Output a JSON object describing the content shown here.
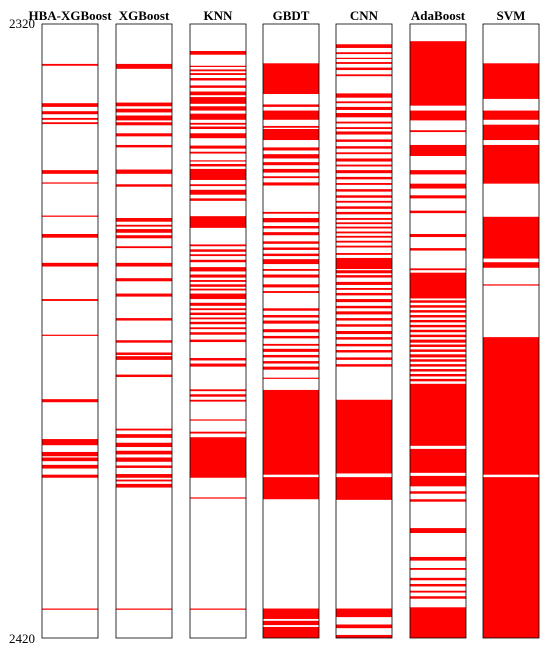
{
  "chart_data": {
    "type": "heatmap",
    "y_start": 2320,
    "y_end": 2420,
    "y_tick_labels": [
      "2320",
      "2420"
    ],
    "color": "#ff0000",
    "columns": [
      {
        "name": "HBA-XGBoost",
        "intervals": [
          [
            2326.5,
            2326.8
          ],
          [
            2332.9,
            2333.5
          ],
          [
            2334.2,
            2334.7
          ],
          [
            2335.3,
            2335.6
          ],
          [
            2336.0,
            2336.3
          ],
          [
            2343.8,
            2344.4
          ],
          [
            2345.8,
            2346.0
          ],
          [
            2351.2,
            2351.4
          ],
          [
            2354.2,
            2354.8
          ],
          [
            2358.9,
            2359.5
          ],
          [
            2364.8,
            2365.1
          ],
          [
            2370.6,
            2370.8
          ],
          [
            2381.1,
            2381.6
          ],
          [
            2387.6,
            2388.6
          ],
          [
            2389.7,
            2390.4
          ],
          [
            2390.6,
            2391.2
          ],
          [
            2391.8,
            2392.4
          ],
          [
            2393.4,
            2393.9
          ],
          [
            2415.2,
            2415.4
          ]
        ]
      },
      {
        "name": "XGBoost",
        "intervals": [
          [
            2326.5,
            2327.3
          ],
          [
            2332.8,
            2333.4
          ],
          [
            2333.8,
            2334.4
          ],
          [
            2334.9,
            2335.7
          ],
          [
            2336.0,
            2336.5
          ],
          [
            2337.8,
            2338.3
          ],
          [
            2339.7,
            2340.1
          ],
          [
            2343.7,
            2344.4
          ],
          [
            2346.1,
            2346.5
          ],
          [
            2351.6,
            2352.2
          ],
          [
            2352.7,
            2353.0
          ],
          [
            2353.4,
            2354.0
          ],
          [
            2354.4,
            2354.9
          ],
          [
            2356.2,
            2356.5
          ],
          [
            2358.9,
            2359.5
          ],
          [
            2361.4,
            2361.9
          ],
          [
            2363.9,
            2364.4
          ],
          [
            2367.9,
            2368.3
          ],
          [
            2371.5,
            2371.9
          ],
          [
            2373.5,
            2373.9
          ],
          [
            2374.1,
            2374.7
          ],
          [
            2377.1,
            2377.5
          ],
          [
            2385.9,
            2386.2
          ],
          [
            2386.8,
            2387.4
          ],
          [
            2388.2,
            2388.9
          ],
          [
            2389.5,
            2390.1
          ],
          [
            2390.6,
            2391.3
          ],
          [
            2391.9,
            2392.3
          ],
          [
            2393.3,
            2393.9
          ],
          [
            2394.2,
            2394.5
          ],
          [
            2394.9,
            2395.5
          ],
          [
            2415.2,
            2415.4
          ]
        ]
      },
      {
        "name": "KNN",
        "intervals": [
          [
            2324.4,
            2325.0
          ],
          [
            2326.8,
            2327.0
          ],
          [
            2327.4,
            2327.7
          ],
          [
            2328.0,
            2328.3
          ],
          [
            2328.8,
            2329.2
          ],
          [
            2330.0,
            2330.4
          ],
          [
            2331.0,
            2331.6
          ],
          [
            2331.9,
            2333.0
          ],
          [
            2333.4,
            2334.1
          ],
          [
            2334.6,
            2335.6
          ],
          [
            2336.1,
            2336.4
          ],
          [
            2336.7,
            2337.1
          ],
          [
            2337.8,
            2338.6
          ],
          [
            2339.8,
            2340.3
          ],
          [
            2340.8,
            2341.1
          ],
          [
            2342.2,
            2342.4
          ],
          [
            2342.8,
            2343.2
          ],
          [
            2343.6,
            2345.4
          ],
          [
            2346.1,
            2346.4
          ],
          [
            2347.0,
            2347.8
          ],
          [
            2348.4,
            2348.8
          ],
          [
            2351.3,
            2353.2
          ],
          [
            2355.9,
            2356.2
          ],
          [
            2356.7,
            2357.1
          ],
          [
            2357.5,
            2357.8
          ],
          [
            2358.4,
            2358.8
          ],
          [
            2359.6,
            2360.3
          ],
          [
            2360.8,
            2361.3
          ],
          [
            2361.7,
            2362.0
          ],
          [
            2362.4,
            2362.8
          ],
          [
            2363.1,
            2363.4
          ],
          [
            2363.9,
            2364.8
          ],
          [
            2365.4,
            2365.9
          ],
          [
            2366.3,
            2366.6
          ],
          [
            2367.0,
            2367.4
          ],
          [
            2367.8,
            2368.1
          ],
          [
            2368.5,
            2368.9
          ],
          [
            2369.4,
            2369.7
          ],
          [
            2370.2,
            2370.6
          ],
          [
            2371.4,
            2371.8
          ],
          [
            2374.4,
            2374.8
          ],
          [
            2375.3,
            2375.8
          ],
          [
            2379.5,
            2379.8
          ],
          [
            2380.3,
            2380.7
          ],
          [
            2381.2,
            2381.5
          ],
          [
            2384.4,
            2384.6
          ],
          [
            2386.4,
            2386.7
          ],
          [
            2387.3,
            2393.9
          ],
          [
            2397.1,
            2397.3
          ],
          [
            2415.2,
            2415.4
          ]
        ]
      },
      {
        "name": "GBDT",
        "intervals": [
          [
            2326.4,
            2331.4
          ],
          [
            2333.1,
            2333.5
          ],
          [
            2334.1,
            2335.6
          ],
          [
            2336.6,
            2336.9
          ],
          [
            2337.1,
            2338.9
          ],
          [
            2340.1,
            2340.6
          ],
          [
            2341.2,
            2341.9
          ],
          [
            2342.5,
            2343.0
          ],
          [
            2343.6,
            2344.2
          ],
          [
            2344.8,
            2345.1
          ],
          [
            2345.8,
            2346.3
          ],
          [
            2350.6,
            2350.9
          ],
          [
            2351.6,
            2352.3
          ],
          [
            2352.9,
            2353.3
          ],
          [
            2353.9,
            2354.4
          ],
          [
            2355.4,
            2355.8
          ],
          [
            2356.4,
            2356.8
          ],
          [
            2357.4,
            2357.8
          ],
          [
            2358.3,
            2359.1
          ],
          [
            2359.9,
            2360.2
          ],
          [
            2360.8,
            2361.3
          ],
          [
            2362.4,
            2362.9
          ],
          [
            2363.5,
            2363.8
          ],
          [
            2366.3,
            2366.7
          ],
          [
            2367.4,
            2367.8
          ],
          [
            2368.3,
            2368.8
          ],
          [
            2369.7,
            2370.2
          ],
          [
            2370.8,
            2371.2
          ],
          [
            2372.1,
            2372.4
          ],
          [
            2372.9,
            2373.4
          ],
          [
            2373.9,
            2374.3
          ],
          [
            2374.9,
            2375.3
          ],
          [
            2375.8,
            2376.3
          ],
          [
            2377.6,
            2377.8
          ],
          [
            2379.6,
            2393.4
          ],
          [
            2393.8,
            2397.4
          ],
          [
            2415.2,
            2416.9
          ],
          [
            2417.2,
            2417.9
          ],
          [
            2418.2,
            2420.0
          ]
        ]
      },
      {
        "name": "CNN",
        "intervals": [
          [
            2323.3,
            2323.9
          ],
          [
            2324.6,
            2324.9
          ],
          [
            2325.5,
            2325.7
          ],
          [
            2326.2,
            2326.5
          ],
          [
            2327.1,
            2327.5
          ],
          [
            2328.2,
            2328.5
          ],
          [
            2331.3,
            2332.0
          ],
          [
            2332.6,
            2332.9
          ],
          [
            2333.5,
            2334.0
          ],
          [
            2334.5,
            2335.2
          ],
          [
            2335.9,
            2336.2
          ],
          [
            2336.8,
            2337.1
          ],
          [
            2337.5,
            2338.0
          ],
          [
            2338.8,
            2339.2
          ],
          [
            2339.9,
            2340.3
          ],
          [
            2340.9,
            2341.2
          ],
          [
            2341.9,
            2342.4
          ],
          [
            2342.9,
            2343.2
          ],
          [
            2343.8,
            2344.3
          ],
          [
            2344.9,
            2345.3
          ],
          [
            2345.9,
            2346.2
          ],
          [
            2346.9,
            2347.3
          ],
          [
            2347.9,
            2348.3
          ],
          [
            2348.8,
            2349.1
          ],
          [
            2349.7,
            2350.1
          ],
          [
            2350.6,
            2351.0
          ],
          [
            2351.6,
            2351.9
          ],
          [
            2352.3,
            2352.6
          ],
          [
            2353.0,
            2353.3
          ],
          [
            2353.8,
            2354.1
          ],
          [
            2354.5,
            2354.8
          ],
          [
            2355.3,
            2355.6
          ],
          [
            2356.1,
            2356.4
          ],
          [
            2357.3,
            2357.6
          ],
          [
            2358.1,
            2359.9
          ],
          [
            2360.1,
            2360.6
          ],
          [
            2360.9,
            2361.3
          ],
          [
            2362.0,
            2362.5
          ],
          [
            2363.0,
            2363.3
          ],
          [
            2363.8,
            2364.2
          ],
          [
            2364.8,
            2365.3
          ],
          [
            2365.9,
            2366.3
          ],
          [
            2366.8,
            2367.3
          ],
          [
            2367.9,
            2368.3
          ],
          [
            2368.9,
            2369.3
          ],
          [
            2370.0,
            2370.5
          ],
          [
            2371.0,
            2371.4
          ],
          [
            2372.1,
            2372.5
          ],
          [
            2373.1,
            2373.5
          ],
          [
            2374.3,
            2374.7
          ],
          [
            2375.4,
            2375.8
          ],
          [
            2381.2,
            2393.2
          ],
          [
            2393.8,
            2397.5
          ],
          [
            2415.2,
            2416.6
          ],
          [
            2417.8,
            2418.4
          ],
          [
            2419.5,
            2420.0
          ]
        ]
      },
      {
        "name": "AdaBoost",
        "intervals": [
          [
            2322.8,
            2333.3
          ],
          [
            2334.1,
            2335.7
          ],
          [
            2337.3,
            2337.6
          ],
          [
            2339.7,
            2341.5
          ],
          [
            2343.8,
            2344.5
          ],
          [
            2346.0,
            2346.8
          ],
          [
            2347.9,
            2348.4
          ],
          [
            2350.4,
            2350.8
          ],
          [
            2354.2,
            2354.7
          ],
          [
            2356.5,
            2356.9
          ],
          [
            2359.8,
            2360.1
          ],
          [
            2360.5,
            2364.7
          ],
          [
            2365.0,
            2365.4
          ],
          [
            2365.8,
            2366.2
          ],
          [
            2366.6,
            2367.0
          ],
          [
            2367.4,
            2367.8
          ],
          [
            2368.2,
            2368.6
          ],
          [
            2369.0,
            2369.4
          ],
          [
            2369.8,
            2370.2
          ],
          [
            2370.6,
            2371.0
          ],
          [
            2371.4,
            2371.9
          ],
          [
            2372.2,
            2372.6
          ],
          [
            2373.0,
            2373.4
          ],
          [
            2373.8,
            2374.3
          ],
          [
            2374.6,
            2375.0
          ],
          [
            2375.4,
            2375.8
          ],
          [
            2376.2,
            2376.6
          ],
          [
            2377.0,
            2377.4
          ],
          [
            2377.8,
            2378.2
          ],
          [
            2378.6,
            2388.7
          ],
          [
            2389.2,
            2393.1
          ],
          [
            2393.6,
            2395.3
          ],
          [
            2396.1,
            2396.5
          ],
          [
            2397.4,
            2397.8
          ],
          [
            2402.1,
            2402.9
          ],
          [
            2406.8,
            2407.4
          ],
          [
            2408.6,
            2408.9
          ],
          [
            2410.2,
            2410.6
          ],
          [
            2411.2,
            2411.6
          ],
          [
            2412.3,
            2412.6
          ],
          [
            2413.2,
            2413.6
          ],
          [
            2415.0,
            2420.0
          ]
        ]
      },
      {
        "name": "SVM",
        "intervals": [
          [
            2326.4,
            2332.2
          ],
          [
            2334.1,
            2335.6
          ],
          [
            2336.4,
            2338.9
          ],
          [
            2339.7,
            2346.0
          ],
          [
            2351.4,
            2358.2
          ],
          [
            2358.8,
            2359.7
          ],
          [
            2362.4,
            2362.6
          ],
          [
            2371.0,
            2393.4
          ],
          [
            2393.8,
            2420.0
          ]
        ]
      }
    ]
  }
}
